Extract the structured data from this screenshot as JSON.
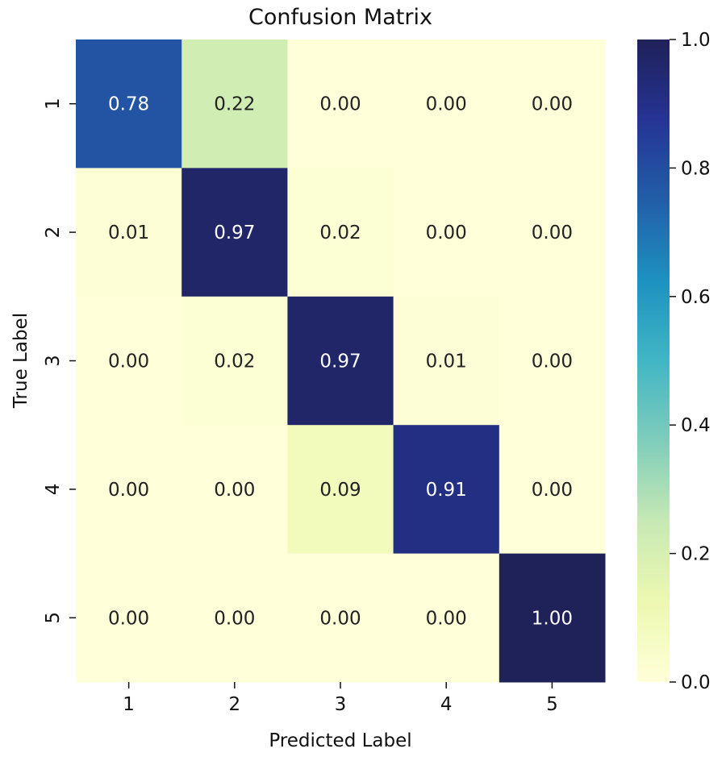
{
  "chart_data": {
    "type": "heatmap",
    "title": "Confusion Matrix",
    "xlabel": "Predicted Label",
    "ylabel": "True Label",
    "x_categories": [
      "1",
      "2",
      "3",
      "4",
      "5"
    ],
    "y_categories": [
      "1",
      "2",
      "3",
      "4",
      "5"
    ],
    "values": [
      [
        0.78,
        0.22,
        0.0,
        0.0,
        0.0
      ],
      [
        0.01,
        0.97,
        0.02,
        0.0,
        0.0
      ],
      [
        0.0,
        0.02,
        0.97,
        0.01,
        0.0
      ],
      [
        0.0,
        0.0,
        0.09,
        0.91,
        0.0
      ],
      [
        0.0,
        0.0,
        0.0,
        0.0,
        1.0
      ]
    ],
    "annotation_format": "0.00",
    "colormap": "YlGnBu",
    "colormap_stops": [
      "#ffffd9",
      "#edf8b1",
      "#c7e9b4",
      "#7fcdbb",
      "#41b6c4",
      "#1d91c0",
      "#225ea8",
      "#253494",
      "#1f2159"
    ],
    "colorbar": {
      "range": [
        0.0,
        1.0
      ],
      "ticks": [
        "0.0",
        "0.2",
        "0.4",
        "0.6",
        "0.8",
        "1.0"
      ]
    }
  }
}
